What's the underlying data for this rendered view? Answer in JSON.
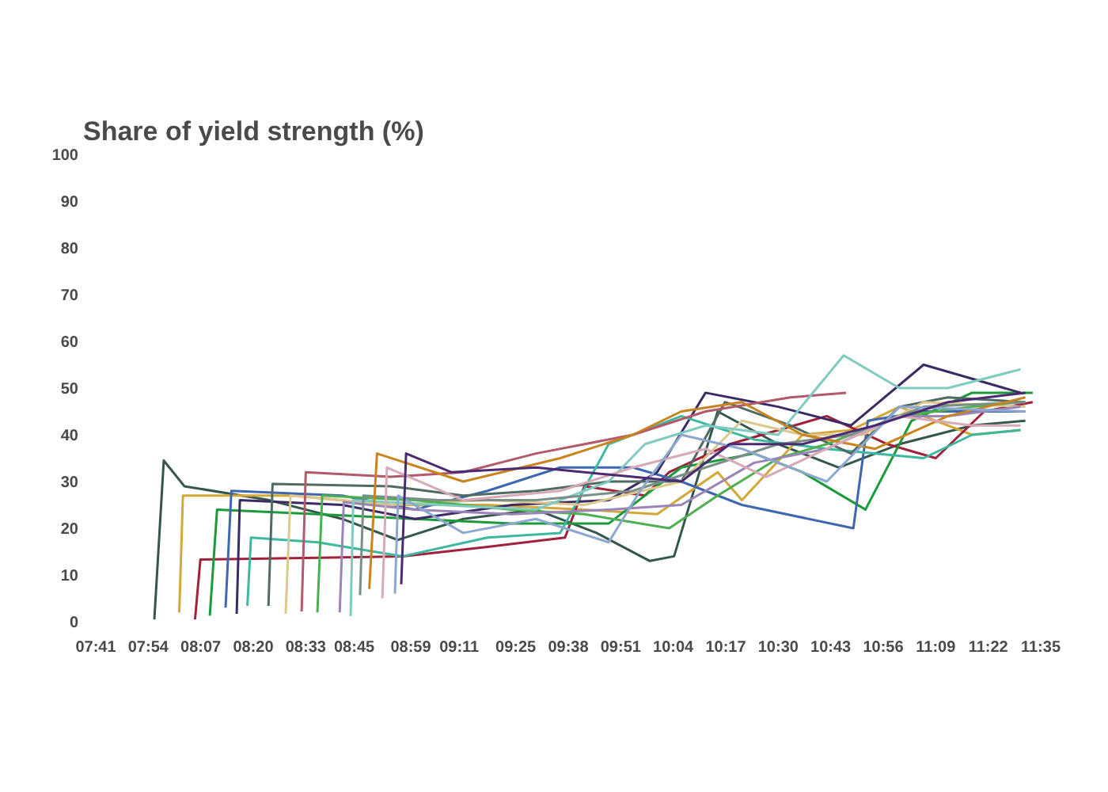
{
  "chart_data": {
    "type": "line",
    "title": "Share of yield strength (%)",
    "xlim": [
      7.6833,
      11.5833
    ],
    "ylim": [
      0,
      100
    ],
    "xticks": [
      {
        "value": 7.6833,
        "label": "07:41"
      },
      {
        "value": 7.9,
        "label": "07:54"
      },
      {
        "value": 8.1167,
        "label": "08:07"
      },
      {
        "value": 8.3333,
        "label": "08:20"
      },
      {
        "value": 8.55,
        "label": "08:33"
      },
      {
        "value": 8.75,
        "label": "08:45"
      },
      {
        "value": 8.9833,
        "label": "08:59"
      },
      {
        "value": 9.1833,
        "label": "09:11"
      },
      {
        "value": 9.4167,
        "label": "09:25"
      },
      {
        "value": 9.6333,
        "label": "09:38"
      },
      {
        "value": 9.85,
        "label": "09:51"
      },
      {
        "value": 10.0667,
        "label": "10:04"
      },
      {
        "value": 10.2833,
        "label": "10:17"
      },
      {
        "value": 10.5,
        "label": "10:30"
      },
      {
        "value": 10.7167,
        "label": "10:43"
      },
      {
        "value": 10.9333,
        "label": "10:56"
      },
      {
        "value": 11.15,
        "label": "11:09"
      },
      {
        "value": 11.3667,
        "label": "11:22"
      },
      {
        "value": 11.5833,
        "label": "11:35"
      }
    ],
    "yticks": [
      0,
      10,
      20,
      30,
      40,
      50,
      60,
      70,
      80,
      90,
      100
    ],
    "grid": false,
    "series": [
      {
        "color": "#35574b",
        "x": [
          7.925,
          7.964,
          8.049,
          8.4,
          8.7,
          8.93,
          9.2,
          9.5,
          9.75,
          9.97,
          10.07,
          10.25,
          10.5,
          10.75,
          11.0,
          11.3,
          11.52
        ],
        "values": [
          0.5,
          34.5,
          29,
          26,
          22,
          17.5,
          22,
          24,
          19,
          13,
          14,
          45,
          38,
          33,
          38,
          42,
          43
        ]
      },
      {
        "color": "#d4a838",
        "x": [
          8.028,
          8.043,
          8.5,
          8.9,
          9.3,
          9.7,
          10.0,
          10.25,
          10.35,
          10.6,
          10.8,
          11.0,
          11.3,
          11.5
        ],
        "values": [
          2,
          27,
          27,
          25,
          25,
          24,
          23,
          32,
          26,
          40,
          41,
          46,
          40,
          41
        ]
      },
      {
        "color": "#a0213a",
        "x": [
          8.093,
          8.115,
          8.6,
          8.95,
          9.3,
          9.62,
          9.7,
          9.95,
          10.05,
          10.3,
          10.7,
          10.95,
          11.15,
          11.35,
          11.55
        ],
        "values": [
          0.5,
          13.3,
          13.7,
          14,
          16,
          18,
          29,
          27,
          32,
          38,
          44,
          38,
          35,
          45,
          47
        ]
      },
      {
        "color": "#1a9a3a",
        "x": [
          8.154,
          8.184,
          8.6,
          9.0,
          9.4,
          9.8,
          10.1,
          10.4,
          10.6,
          10.86,
          11.05,
          11.3,
          11.55
        ],
        "values": [
          1.3,
          24,
          23,
          22,
          21,
          21,
          33,
          36,
          32,
          24,
          43,
          49,
          49
        ]
      },
      {
        "color": "#3e67b0",
        "x": [
          8.219,
          8.243,
          8.7,
          9.0,
          9.3,
          9.6,
          9.9,
          10.1,
          10.35,
          10.81,
          10.87,
          11.1,
          11.3,
          11.52
        ],
        "values": [
          3,
          28,
          27,
          24,
          28,
          33,
          33,
          30,
          25,
          20,
          43,
          45,
          45,
          45
        ]
      },
      {
        "color": "#3b2a63",
        "x": [
          8.265,
          8.278,
          8.7,
          9.0,
          9.4,
          9.8,
          10.0,
          10.2,
          10.5,
          10.8,
          11.1,
          11.5
        ],
        "values": [
          1.7,
          26,
          25,
          22,
          25,
          26,
          32,
          49,
          46,
          42,
          55,
          49
        ]
      },
      {
        "color": "#3db8a0",
        "x": [
          8.309,
          8.324,
          8.6,
          8.95,
          9.3,
          9.6,
          9.8,
          10.1,
          10.4,
          10.7,
          11.1,
          11.3,
          11.5
        ],
        "values": [
          3.4,
          18,
          17,
          14,
          18,
          19,
          38,
          44,
          39,
          37,
          35,
          40,
          41
        ]
      },
      {
        "color": "#4f6b63",
        "x": [
          8.396,
          8.413,
          8.9,
          9.2,
          9.5,
          9.8,
          10.1,
          10.28,
          10.55,
          10.8,
          11.0,
          11.2,
          11.52
        ],
        "values": [
          3.4,
          29.5,
          29,
          27,
          28,
          30,
          30,
          47,
          42,
          36,
          46,
          48,
          47
        ]
      },
      {
        "color": "#dcc88c",
        "x": [
          8.467,
          8.487,
          8.9,
          9.3,
          9.7,
          10.1,
          10.35,
          10.6,
          10.85,
          11.1,
          11.52
        ],
        "values": [
          1.7,
          27,
          25,
          26,
          25,
          30,
          43,
          40,
          40,
          47,
          46
        ]
      },
      {
        "color": "#b05a6a",
        "x": [
          8.533,
          8.55,
          8.9,
          9.2,
          9.5,
          9.9,
          10.2,
          10.55,
          10.78
        ],
        "values": [
          2.2,
          32,
          31,
          32,
          36,
          40,
          45,
          48,
          49
        ]
      },
      {
        "color": "#4cb050",
        "x": [
          8.598,
          8.618,
          9.0,
          9.4,
          9.7,
          10.05,
          10.25,
          10.5,
          10.7,
          11.0,
          11.3,
          11.5
        ],
        "values": [
          2,
          27,
          26,
          24,
          23,
          20,
          27,
          35,
          38,
          44,
          46,
          47
        ]
      },
      {
        "color": "#9b84b8",
        "x": [
          8.69,
          8.707,
          9.0,
          9.4,
          9.8,
          10.1,
          10.4,
          10.7,
          11.0,
          11.2,
          11.5
        ],
        "values": [
          2,
          25.6,
          24,
          23,
          24,
          25,
          34,
          37,
          44,
          44,
          46
        ]
      },
      {
        "color": "#80cbbf",
        "x": [
          8.735,
          8.746,
          9.1,
          9.5,
          9.8,
          9.95,
          10.2,
          10.5,
          10.77,
          11.0,
          11.2,
          11.5
        ],
        "values": [
          1.2,
          26,
          25,
          24,
          30,
          38,
          42,
          40,
          57,
          50,
          50,
          54
        ]
      },
      {
        "color": "#7a8f88",
        "x": [
          8.774,
          8.788,
          9.1,
          9.5,
          9.9,
          10.2,
          10.5,
          10.8,
          11.1,
          11.52
        ],
        "values": [
          5.7,
          27,
          26,
          26,
          28,
          33,
          38,
          40,
          46,
          47
        ]
      },
      {
        "color": "#c98420",
        "x": [
          8.812,
          8.844,
          9.2,
          9.6,
          9.9,
          10.1,
          10.35,
          10.6,
          10.9,
          11.2,
          11.52
        ],
        "values": [
          7,
          36,
          30,
          35,
          40,
          45,
          47,
          40,
          37,
          44,
          48
        ]
      },
      {
        "color": "#d8aab8",
        "x": [
          8.866,
          8.885,
          9.2,
          9.6,
          9.9,
          10.2,
          10.45,
          10.7,
          11.0,
          11.3,
          11.5
        ],
        "values": [
          5,
          33,
          26,
          28,
          33,
          37,
          31,
          37,
          44,
          42,
          42
        ]
      },
      {
        "color": "#8ca8d0",
        "x": [
          8.918,
          8.931,
          9.2,
          9.5,
          9.8,
          9.93,
          10.1,
          10.35,
          10.7,
          11.0,
          11.52
        ],
        "values": [
          6,
          27,
          19,
          22,
          17,
          28,
          40,
          37,
          30,
          46,
          45
        ]
      },
      {
        "color": "#4a2a70",
        "x": [
          8.944,
          8.964,
          9.15,
          9.5,
          9.9,
          10.1,
          10.3,
          10.6,
          10.9,
          11.2,
          11.52
        ],
        "values": [
          8,
          36,
          32,
          33,
          31,
          30,
          38,
          38,
          42,
          47,
          49
        ]
      }
    ]
  }
}
